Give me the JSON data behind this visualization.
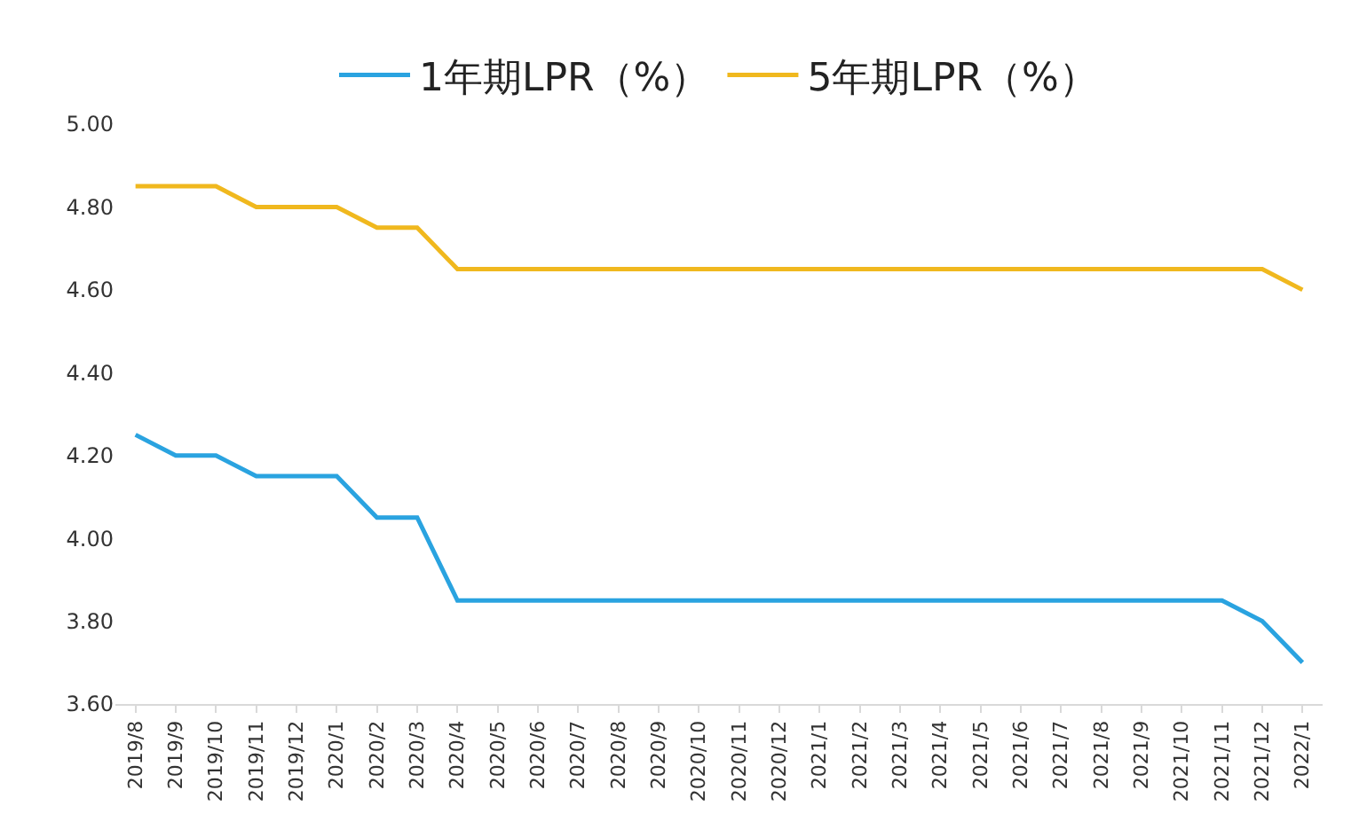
{
  "chart_data": {
    "type": "line",
    "categories": [
      "2019/8",
      "2019/9",
      "2019/10",
      "2019/11",
      "2019/12",
      "2020/1",
      "2020/2",
      "2020/3",
      "2020/4",
      "2020/5",
      "2020/6",
      "2020/7",
      "2020/8",
      "2020/9",
      "2020/10",
      "2020/11",
      "2020/12",
      "2021/1",
      "2021/2",
      "2021/3",
      "2021/4",
      "2021/5",
      "2021/6",
      "2021/7",
      "2021/8",
      "2021/9",
      "2021/10",
      "2021/11",
      "2021/12",
      "2022/1"
    ],
    "series": [
      {
        "name": "1年期LPR（%）",
        "color": "#2aa3e0",
        "values": [
          4.25,
          4.2,
          4.2,
          4.15,
          4.15,
          4.15,
          4.05,
          4.05,
          3.85,
          3.85,
          3.85,
          3.85,
          3.85,
          3.85,
          3.85,
          3.85,
          3.85,
          3.85,
          3.85,
          3.85,
          3.85,
          3.85,
          3.85,
          3.85,
          3.85,
          3.85,
          3.85,
          3.85,
          3.8,
          3.7
        ]
      },
      {
        "name": "5年期LPR（%）",
        "color": "#f0b81e",
        "values": [
          4.85,
          4.85,
          4.85,
          4.8,
          4.8,
          4.8,
          4.75,
          4.75,
          4.65,
          4.65,
          4.65,
          4.65,
          4.65,
          4.65,
          4.65,
          4.65,
          4.65,
          4.65,
          4.65,
          4.65,
          4.65,
          4.65,
          4.65,
          4.65,
          4.65,
          4.65,
          4.65,
          4.65,
          4.65,
          4.6
        ]
      }
    ],
    "ylim": [
      3.6,
      5.0
    ],
    "yticks": [
      {
        "value": 3.6,
        "label": "3.60"
      },
      {
        "value": 3.8,
        "label": "3.80"
      },
      {
        "value": 4.0,
        "label": "4.00"
      },
      {
        "value": 4.2,
        "label": "4.20"
      },
      {
        "value": 4.4,
        "label": "4.40"
      },
      {
        "value": 4.6,
        "label": "4.60"
      },
      {
        "value": 4.8,
        "label": "4.80"
      },
      {
        "value": 5.0,
        "label": "5.00"
      }
    ],
    "grid": false,
    "legend": "top",
    "marker": "none",
    "line_style": "solid"
  }
}
